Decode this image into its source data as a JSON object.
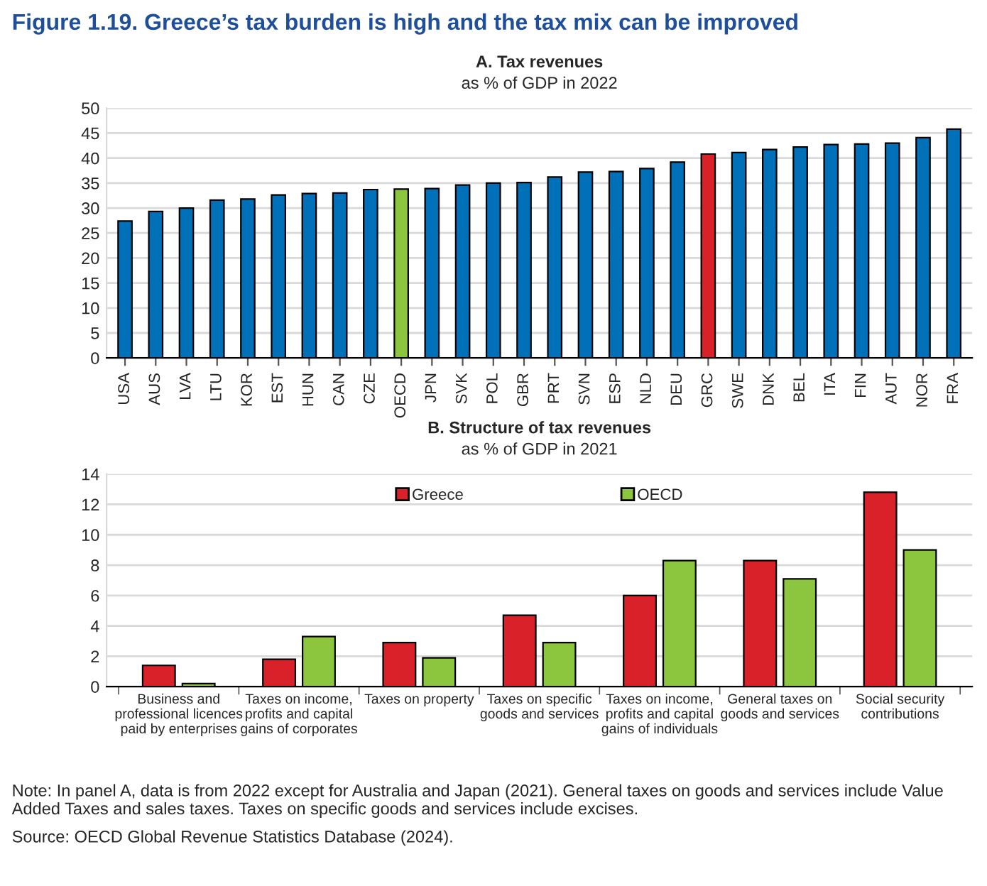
{
  "chart_data": [
    {
      "type": "bar",
      "title": "A. Tax revenues",
      "subtitle": "as % of GDP in 2022",
      "annotations": [
        "Figure 1.19. Greece’s tax burden is high and the tax mix can be improved"
      ],
      "categories": [
        "USA",
        "AUS",
        "LVA",
        "LTU",
        "KOR",
        "EST",
        "HUN",
        "CAN",
        "CZE",
        "OECD",
        "JPN",
        "SVK",
        "POL",
        "GBR",
        "PRT",
        "SVN",
        "ESP",
        "NLD",
        "DEU",
        "GRC",
        "SWE",
        "DNK",
        "BEL",
        "ITA",
        "FIN",
        "AUT",
        "NOR",
        "FRA"
      ],
      "values": [
        27.4,
        29.3,
        30.0,
        31.6,
        31.8,
        32.6,
        32.9,
        33.0,
        33.7,
        33.8,
        33.9,
        34.6,
        35.0,
        35.1,
        36.2,
        37.2,
        37.3,
        37.9,
        39.2,
        40.8,
        41.1,
        41.7,
        42.2,
        42.7,
        42.8,
        43.0,
        44.1,
        45.8
      ],
      "colors": [
        "#0070b8",
        "#0070b8",
        "#0070b8",
        "#0070b8",
        "#0070b8",
        "#0070b8",
        "#0070b8",
        "#0070b8",
        "#0070b8",
        "#8cc63f",
        "#0070b8",
        "#0070b8",
        "#0070b8",
        "#0070b8",
        "#0070b8",
        "#0070b8",
        "#0070b8",
        "#0070b8",
        "#0070b8",
        "#d9212a",
        "#0070b8",
        "#0070b8",
        "#0070b8",
        "#0070b8",
        "#0070b8",
        "#0070b8",
        "#0070b8",
        "#0070b8"
      ],
      "ylim": [
        0,
        50
      ],
      "yticks": [
        0,
        5,
        10,
        15,
        20,
        25,
        30,
        35,
        40,
        45,
        50
      ],
      "grid": "y",
      "legend": false
    },
    {
      "type": "bar",
      "title": "B. Structure of tax revenues",
      "subtitle": "as % of GDP in 2021",
      "annotations": [
        "Note: In panel A, data is from 2022 except for Australia and Japan (2021). General taxes on goods and services include Value Added Taxes and sales taxes. Taxes on specific goods and services include excises.",
        "Source: OECD Global Revenue Statistics Database (2024)."
      ],
      "categories": [
        "Business and\nprofessional licences\npaid by enterprises",
        "Taxes on income,\nprofits and capital\ngains of corporates",
        "Taxes on property",
        "Taxes on specific\ngoods and services",
        "Taxes on income,\nprofits and capital\ngains of individuals",
        "General taxes on\ngoods and services",
        "Social security\ncontributions"
      ],
      "series": [
        {
          "name": "Greece",
          "color": "#d9212a",
          "values": [
            1.4,
            1.8,
            2.9,
            4.7,
            6.0,
            8.3,
            12.8
          ]
        },
        {
          "name": "OECD",
          "color": "#8cc63f",
          "values": [
            0.2,
            3.3,
            1.9,
            2.9,
            8.3,
            7.1,
            9.0
          ]
        }
      ],
      "ylim": [
        0,
        14
      ],
      "yticks": [
        0,
        2,
        4,
        6,
        8,
        10,
        12,
        14
      ],
      "grid": "y",
      "legend": "top"
    }
  ]
}
